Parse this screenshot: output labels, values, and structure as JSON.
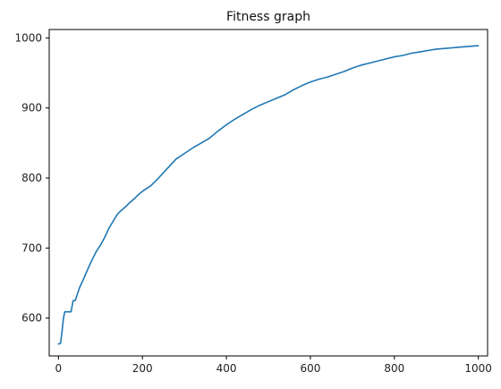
{
  "chart_data": {
    "type": "line",
    "title": "Fitness graph",
    "xlabel": "",
    "ylabel": "",
    "xlim": [
      -22,
      1022
    ],
    "ylim": [
      546,
      1012
    ],
    "xticks": [
      0,
      200,
      400,
      600,
      800,
      1000
    ],
    "yticks": [
      600,
      700,
      800,
      900,
      1000
    ],
    "grid": false,
    "legend": "none",
    "series": [
      {
        "color": "#1f77b4",
        "x": [
          0,
          5,
          8,
          12,
          15,
          20,
          25,
          30,
          35,
          40,
          50,
          60,
          70,
          80,
          90,
          100,
          110,
          120,
          130,
          140,
          150,
          160,
          170,
          180,
          190,
          200,
          220,
          240,
          260,
          280,
          300,
          320,
          340,
          360,
          380,
          400,
          420,
          440,
          460,
          480,
          500,
          520,
          540,
          560,
          580,
          600,
          620,
          640,
          660,
          680,
          700,
          720,
          740,
          760,
          780,
          800,
          820,
          840,
          860,
          880,
          900,
          920,
          940,
          960,
          980,
          1000
        ],
        "y": [
          563,
          564,
          578,
          600,
          609,
          609,
          609,
          609,
          625,
          625,
          643,
          656,
          670,
          683,
          695,
          704,
          715,
          728,
          738,
          748,
          754,
          759,
          765,
          770,
          776,
          781,
          789,
          801,
          814,
          827,
          835,
          843,
          850,
          857,
          867,
          876,
          884,
          891,
          898,
          904,
          909,
          914,
          919,
          926,
          932,
          937,
          941,
          944,
          948,
          952,
          957,
          961,
          964,
          967,
          970,
          973,
          975,
          978,
          980,
          982,
          984,
          985,
          986,
          987,
          988,
          989
        ]
      }
    ]
  }
}
